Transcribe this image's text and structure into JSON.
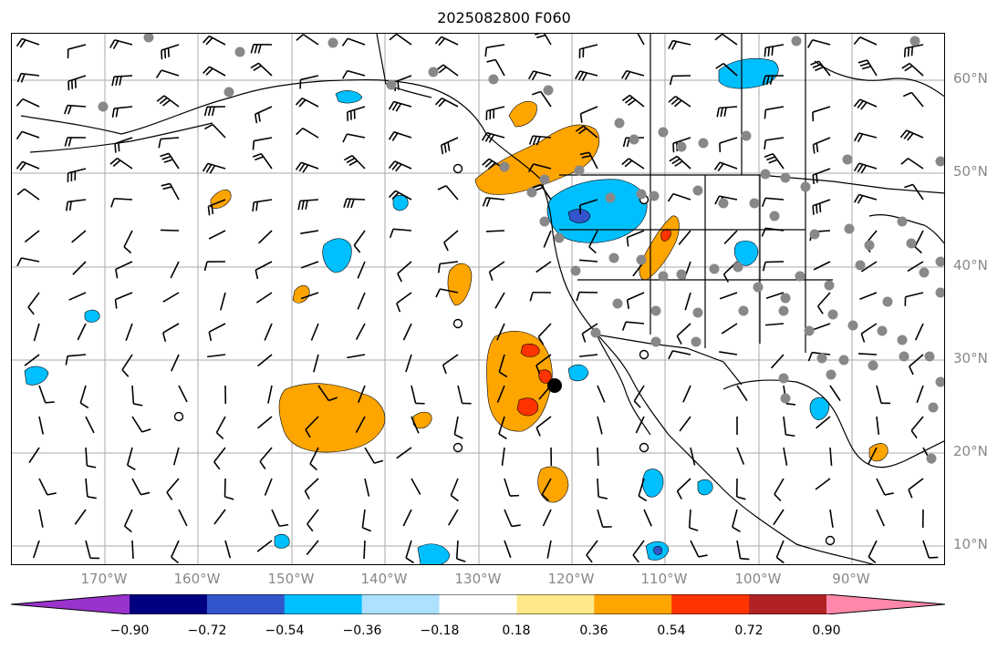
{
  "title": "2025082800 F060",
  "lat_labels": [
    "60°N",
    "50°N",
    "40°N",
    "30°N",
    "20°N",
    "10°N"
  ],
  "lon_labels": [
    "170°W",
    "160°W",
    "150°W",
    "140°W",
    "130°W",
    "120°W",
    "110°W",
    "100°W",
    "90°W"
  ],
  "colorbar": {
    "tick_labels": [
      "−0.90",
      "−0.72",
      "−0.54",
      "−0.36",
      "−0.18",
      "0.18",
      "0.36",
      "0.54",
      "0.72",
      "0.90"
    ],
    "colors": [
      "#9933cc",
      "#000080",
      "#3355cc",
      "#00bfff",
      "#aee0ff",
      "#ffffff",
      "#ffe88a",
      "#ffa500",
      "#ff3300",
      "#b22222",
      "#ff88aa"
    ]
  },
  "colors": {
    "positive_contours": [
      "#ffa500",
      "#ff3300"
    ],
    "negative_contours": [
      "#00bfff",
      "#3355cc"
    ],
    "station_dot": "#888888",
    "grid": "#aaaaaa"
  },
  "icons": [
    "wind-barb-icon",
    "calm-circle-icon",
    "station-dot-icon",
    "marker-dot-icon"
  ]
}
